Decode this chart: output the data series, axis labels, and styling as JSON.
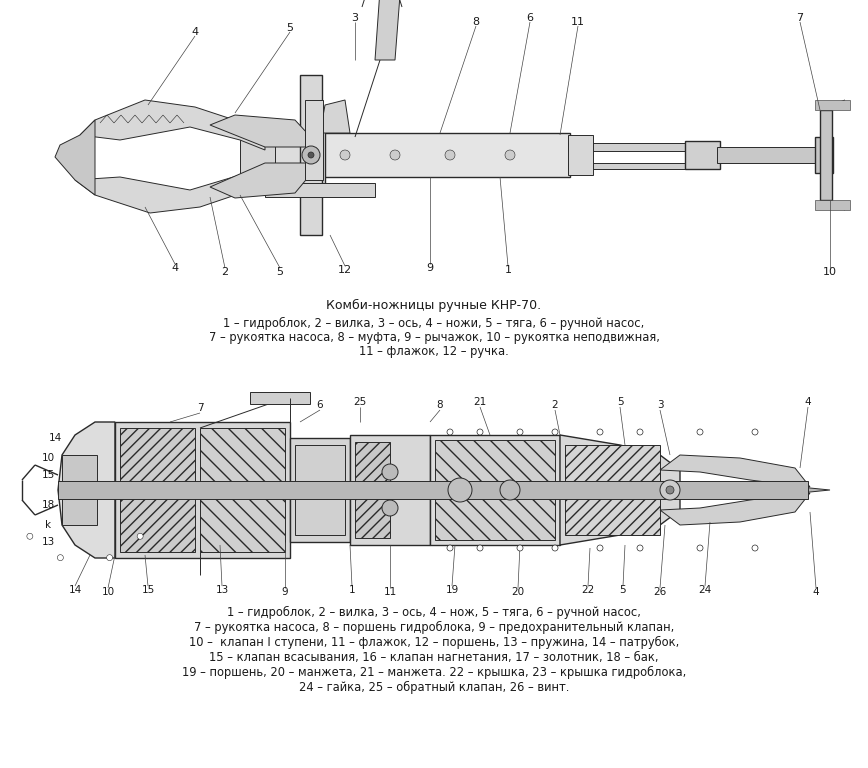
{
  "bg_color": "#ffffff",
  "title1": "Комби-ножницы ручные КНР-70.",
  "caption1_line1": "1 – гидроблок, 2 – вилка, 3 – ось, 4 – ножи, 5 – тяга, 6 – ручной насос,",
  "caption1_line2": "7 – рукоятка насоса, 8 – муфта, 9 – рычажок, 10 – рукоятка неподвижная,",
  "caption1_line3": "11 – флажок, 12 – ручка.",
  "caption2_line1": "1 – гидроблок, 2 – вилка, 3 – ось, 4 – нож, 5 – тяга, 6 – ручной насос,",
  "caption2_line2": "7 – рукоятка насоса, 8 – поршень гидроблока, 9 – предохранительный клапан,",
  "caption2_line3": "10 –  клапан I ступени, 11 – флажок, 12 – поршень, 13 – пружина, 14 – патрубок,",
  "caption2_line4": "15 – клапан всасывания, 16 – клапан нагнетания, 17 – золотник, 18 – бак,",
  "caption2_line5": "19 – поршень, 20 – манжета, 21 – манжета. 22 – крышка, 23 – крышка гидроблока,",
  "caption2_line6": "24 – гайка, 25 – обратный клапан, 26 – винт.",
  "text_color": "#1a1a1a",
  "font_size_title": 9.0,
  "font_size_caption": 8.3,
  "line_color": "#2a2a2a"
}
